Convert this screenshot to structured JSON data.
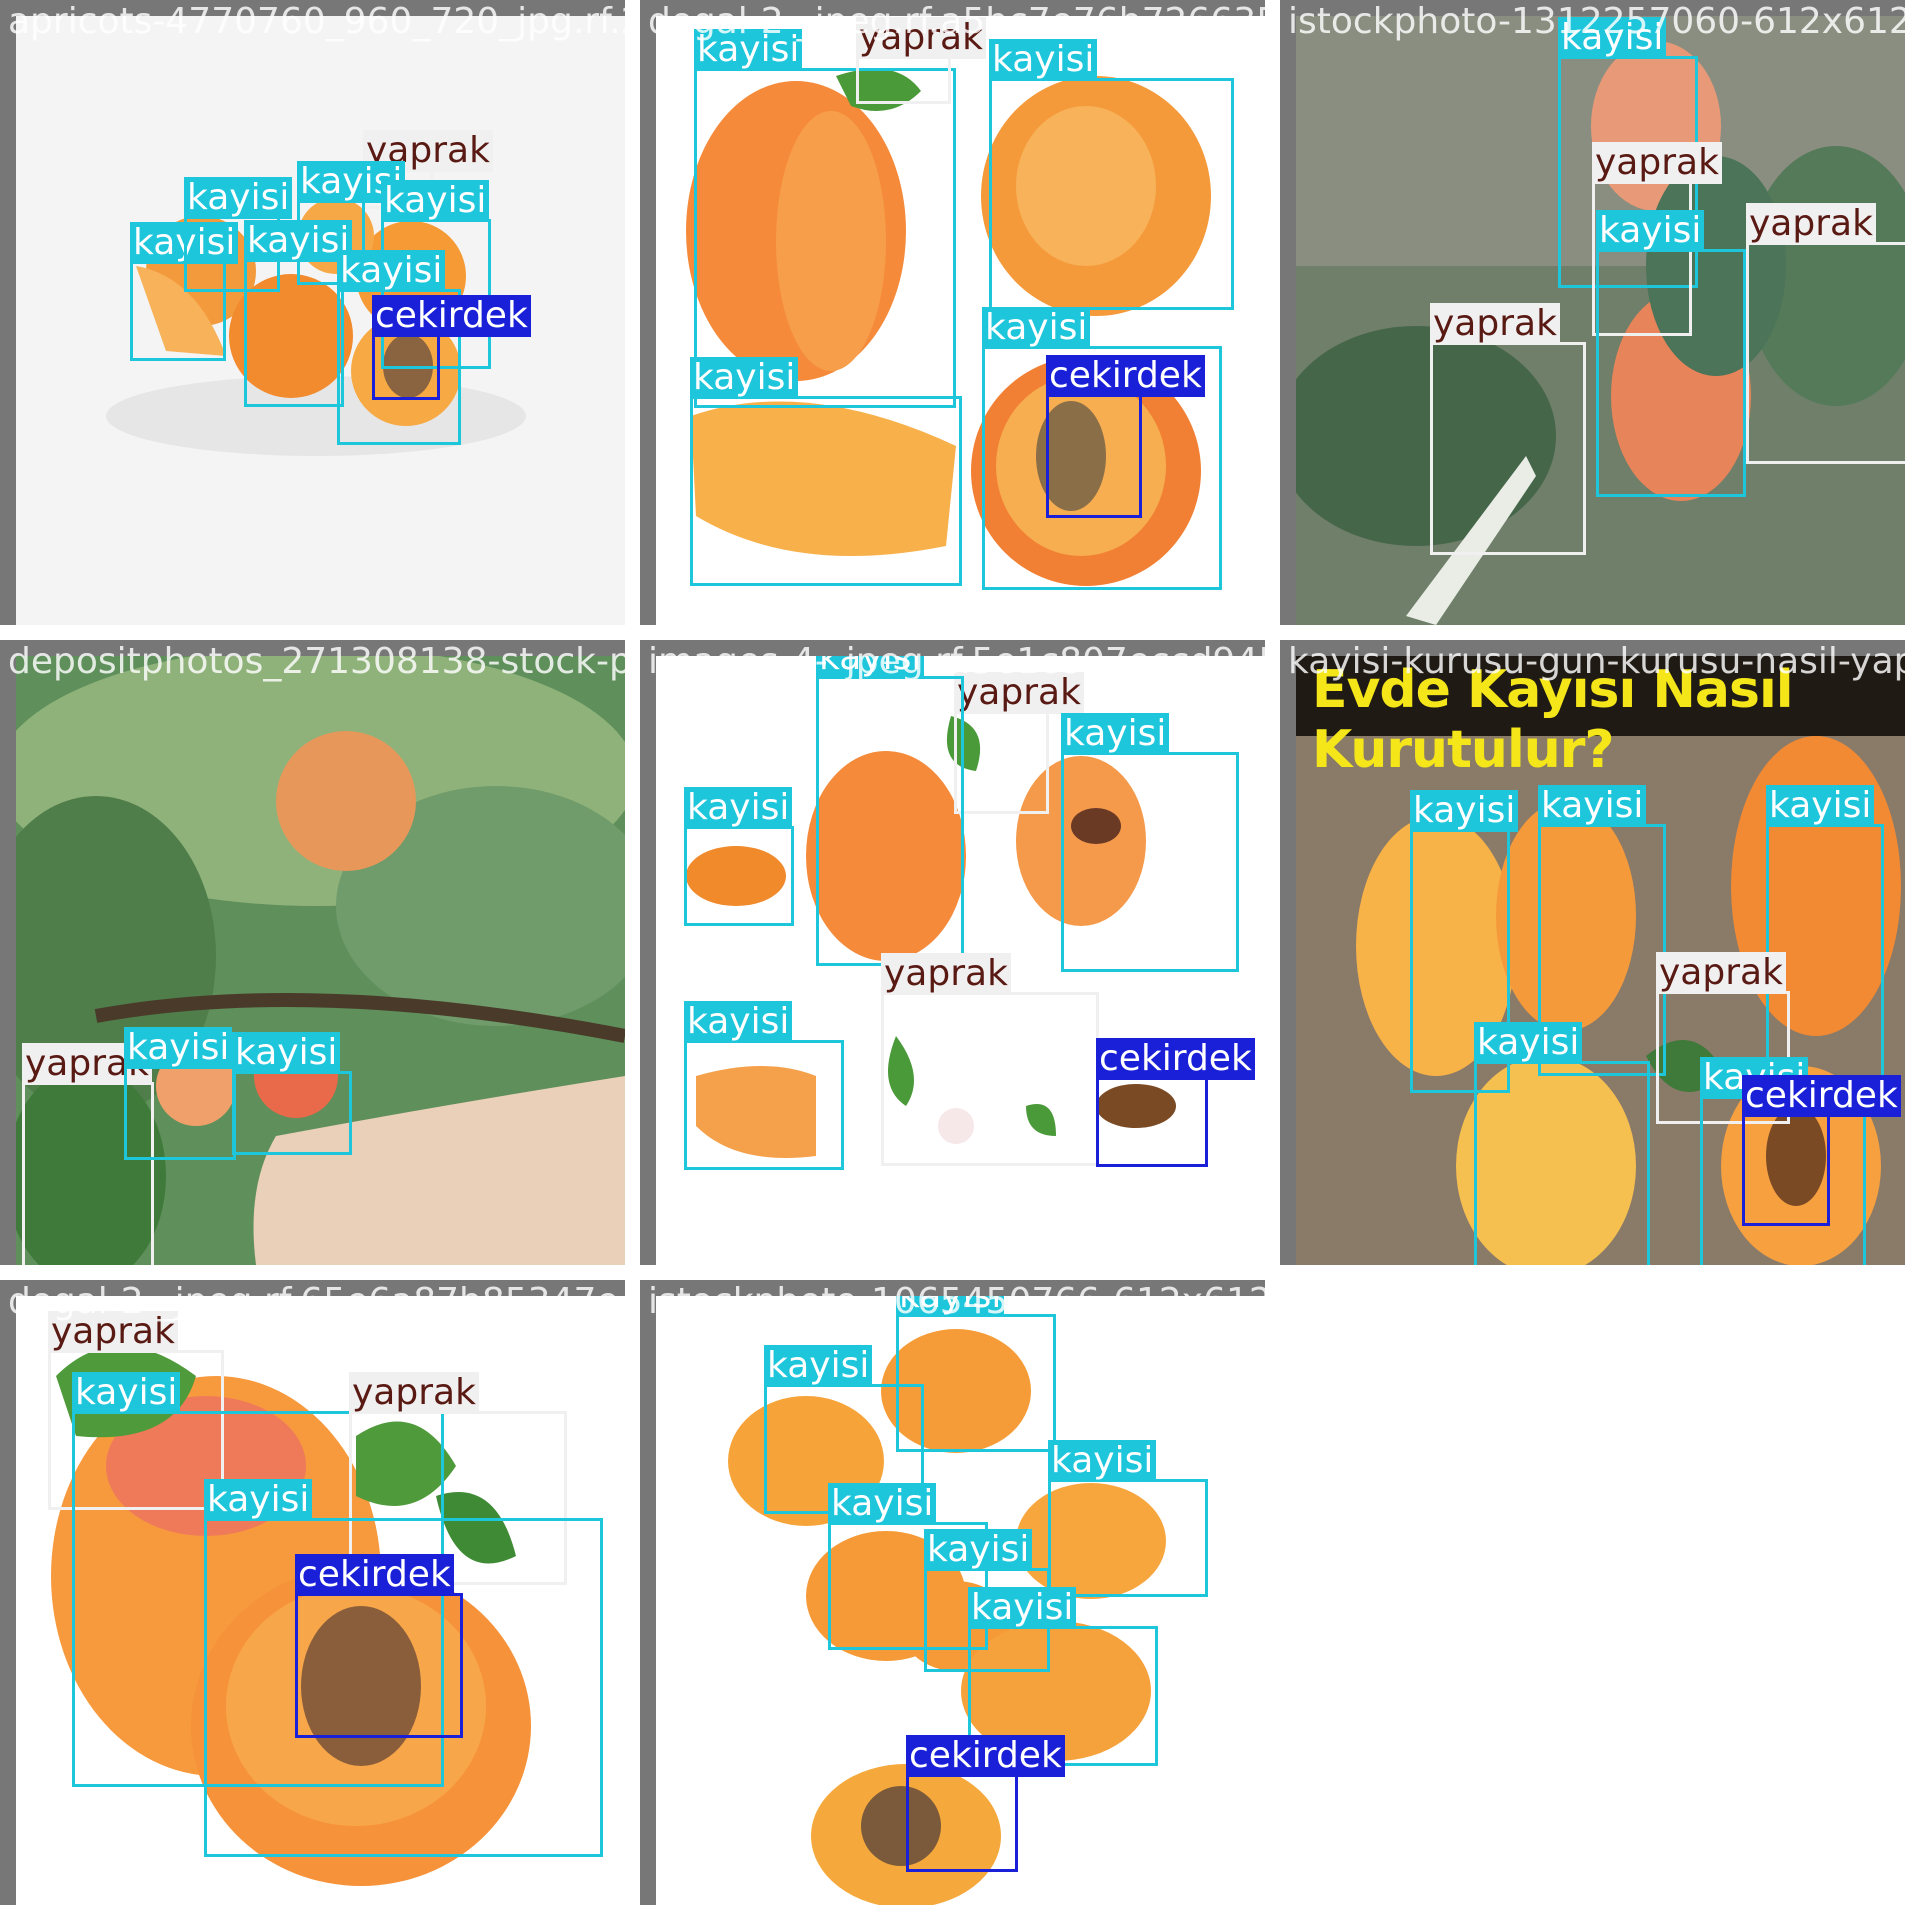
{
  "tiles": [
    {
      "filename": "apricots-4770760_960_720_jpg.rf.25dcf08...",
      "scene": "white",
      "boxes": [
        {
          "label": "kayisi"
        },
        {
          "label": "kayisi"
        },
        {
          "label": "yaprak"
        },
        {
          "label": "kayisi"
        },
        {
          "label": "kayisi"
        },
        {
          "label": "kayisi"
        },
        {
          "label": "kayisi"
        },
        {
          "label": "cekirdek"
        }
      ]
    },
    {
      "filename": "dogal-2-_jpeg.rf.a5bc7e76b726635ff5e232",
      "scene": "white",
      "boxes": [
        {
          "label": "kayisi"
        },
        {
          "label": "yaprak"
        },
        {
          "label": "kayisi"
        },
        {
          "label": "kayisi"
        },
        {
          "label": "kayisi"
        },
        {
          "label": "cekirdek"
        }
      ]
    },
    {
      "filename": "istockphoto-1312257060-612x612_jpg",
      "scene": "leaves",
      "boxes": [
        {
          "label": "kayisi"
        },
        {
          "label": "yaprak"
        },
        {
          "label": "kayisi"
        },
        {
          "label": "yaprak"
        },
        {
          "label": "yaprak"
        }
      ]
    },
    {
      "filename": "depositphotos_271308138-stock-photo-ripe",
      "scene": "tree",
      "boxes": [
        {
          "label": "yaprak"
        },
        {
          "label": "kayisi"
        },
        {
          "label": "kayisi"
        }
      ]
    },
    {
      "filename": "images-4-_jpeg.rf.5e1c807eccd945e3f27384",
      "scene": "white",
      "boxes": [
        {
          "label": "kayisi"
        },
        {
          "label": "yaprak"
        },
        {
          "label": "kayisi"
        },
        {
          "label": "kayisi"
        },
        {
          "label": "yaprak"
        },
        {
          "label": "kayisi"
        },
        {
          "label": "cekirdek"
        }
      ]
    },
    {
      "filename": "kayisi-kurusu-gun-kurusu-nasil-yapilir-",
      "scene": "wood",
      "banner": "Evde Kayısı Nasıl Kurutulur?",
      "boxes": [
        {
          "label": "kayisi"
        },
        {
          "label": "kayisi"
        },
        {
          "label": "kayisi"
        },
        {
          "label": "yaprak"
        },
        {
          "label": "kayisi"
        },
        {
          "label": "kayisi"
        },
        {
          "label": "cekirdek"
        }
      ]
    },
    {
      "filename": "dogal-2-_jpeg.rf.65e6a87b85347e4",
      "scene": "white",
      "boxes": [
        {
          "label": "yaprak"
        },
        {
          "label": "kayisi"
        },
        {
          "label": "yaprak"
        },
        {
          "label": "kayisi"
        },
        {
          "label": "cekirdek"
        }
      ]
    },
    {
      "filename": "istockphoto-1065450766-612x612_jpg.rf.3a",
      "scene": "white",
      "boxes": [
        {
          "label": "kayisi"
        },
        {
          "label": "kayisi"
        },
        {
          "label": "kayisi"
        },
        {
          "label": "kayisi"
        },
        {
          "label": "kayisi"
        },
        {
          "label": "kayisi"
        },
        {
          "label": "cekirdek"
        }
      ]
    }
  ]
}
